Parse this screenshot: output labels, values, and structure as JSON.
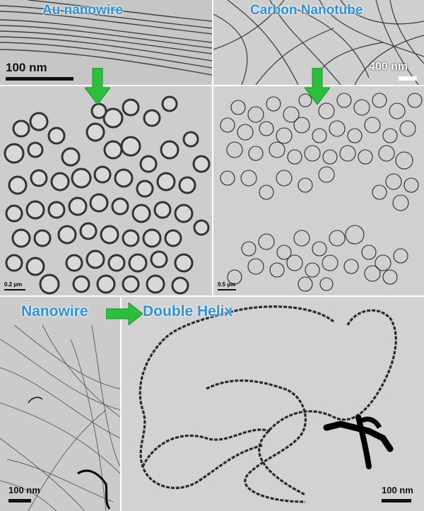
{
  "panels": {
    "au_nanowire": {
      "title": "Au nanowire",
      "scale": "100 nm"
    },
    "carbon_nanotube": {
      "title": "Carbon Nanotube",
      "scale": "400 nm"
    },
    "au_rings": {
      "scale": "0.2 µm"
    },
    "cnt_rings": {
      "scale": "0.5 µm"
    },
    "nanowire_bottom": {
      "title": "Nanowire",
      "scale": "100 nm"
    },
    "double_helix": {
      "title": "Double Helix",
      "scale": "100 nm"
    }
  },
  "colors": {
    "label": "#2f8fd8",
    "arrow": "#2bbf3c"
  }
}
